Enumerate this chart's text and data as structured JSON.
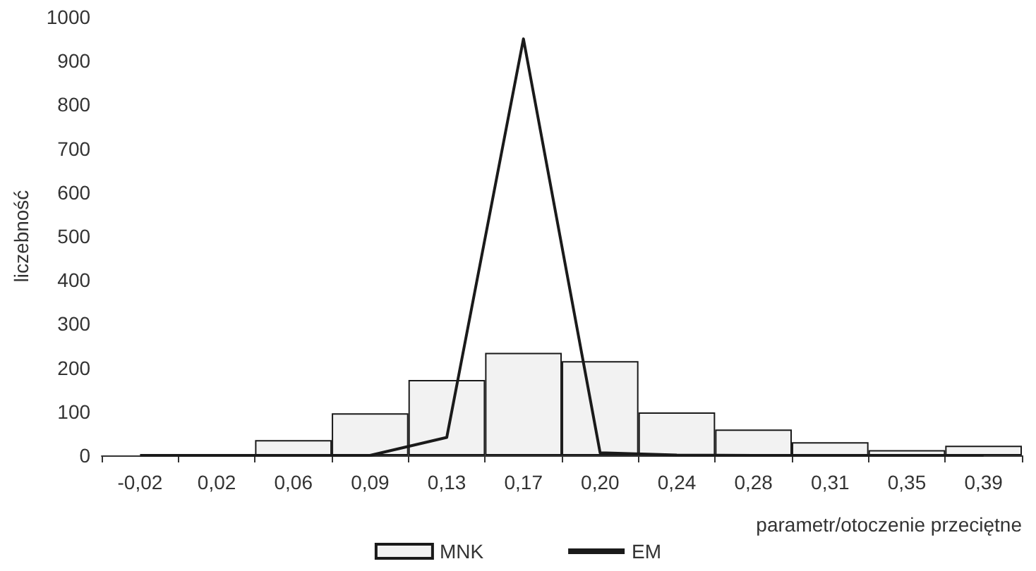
{
  "chart_data": {
    "type": "bar",
    "xlabel": "parametr/otoczenie przeciętne",
    "ylabel": "liczebność",
    "categories": [
      "-0,02",
      "0,02",
      "0,06",
      "0,09",
      "0,13",
      "0,17",
      "0,20",
      "0,24",
      "0,28",
      "0,31",
      "0,35",
      "0,39"
    ],
    "series": [
      {
        "name": "MNK",
        "color": "#f2f2f2",
        "values": [
          0,
          0,
          35,
          96,
          172,
          234,
          215,
          98,
          59,
          30,
          12,
          22
        ]
      },
      {
        "name": "EM",
        "type": "line",
        "color": "#1a1a1a",
        "values": [
          0,
          0,
          0,
          0,
          41,
          950,
          6,
          1,
          0,
          0,
          0,
          0
        ]
      }
    ],
    "ylim": [
      0,
      1000
    ],
    "yticks": [
      0,
      100,
      200,
      300,
      400,
      500,
      600,
      700,
      800,
      900,
      1000
    ],
    "grid": false,
    "legend": "bottom",
    "marker": "none",
    "line_style": "solid"
  }
}
